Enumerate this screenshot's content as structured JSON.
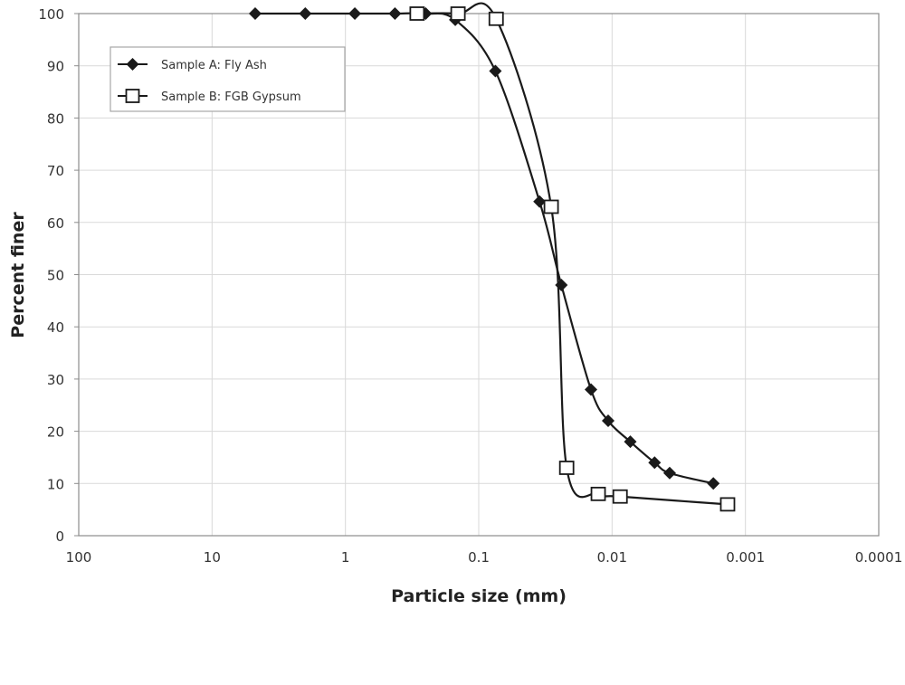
{
  "chart_data": {
    "type": "line",
    "title": "",
    "xlabel": "Particle size (mm)",
    "ylabel": "Percent finer",
    "x_scale": "log",
    "x_reversed": true,
    "xlim": [
      100,
      0.0001
    ],
    "ylim": [
      0,
      100
    ],
    "x_ticks": [
      "100",
      "10",
      "1",
      "0.1",
      "0.01",
      "0.001",
      "0.0001"
    ],
    "x_tick_values": [
      100,
      10,
      1,
      0.1,
      0.01,
      0.001,
      0.0001
    ],
    "y_ticks": [
      "0",
      "10",
      "20",
      "30",
      "40",
      "50",
      "60",
      "70",
      "80",
      "90",
      "100"
    ],
    "y_tick_values": [
      0,
      10,
      20,
      30,
      40,
      50,
      60,
      70,
      80,
      90,
      100
    ],
    "grid": true,
    "legend_position": "upper-left",
    "series": [
      {
        "name": "Sample A: Fly Ash",
        "marker": "diamond-filled",
        "color": "#1a1a1a",
        "x": [
          4.75,
          2.0,
          0.85,
          0.425,
          0.25,
          0.15,
          0.075,
          0.035,
          0.024,
          0.0144,
          0.0107,
          0.0073,
          0.0048,
          0.0037,
          0.00174
        ],
        "y": [
          100,
          100,
          100,
          100,
          100,
          98.8,
          89,
          64,
          48,
          28,
          22,
          18,
          14,
          12,
          10
        ]
      },
      {
        "name": "Sample B: FGB Gypsum",
        "marker": "square-open",
        "color": "#1a1a1a",
        "x": [
          0.29,
          0.143,
          0.074,
          0.0286,
          0.0219,
          0.0127,
          0.0087,
          0.00136
        ],
        "y": [
          100,
          100,
          99,
          63,
          13,
          8,
          7.5,
          6
        ]
      }
    ]
  },
  "legend": {
    "items": [
      {
        "label": "Sample A: Fly Ash"
      },
      {
        "label": "Sample B: FGB Gypsum"
      }
    ]
  },
  "colors": {
    "line": "#1a1a1a",
    "grid": "#d9d9d9",
    "axis": "#7f7f7f"
  }
}
